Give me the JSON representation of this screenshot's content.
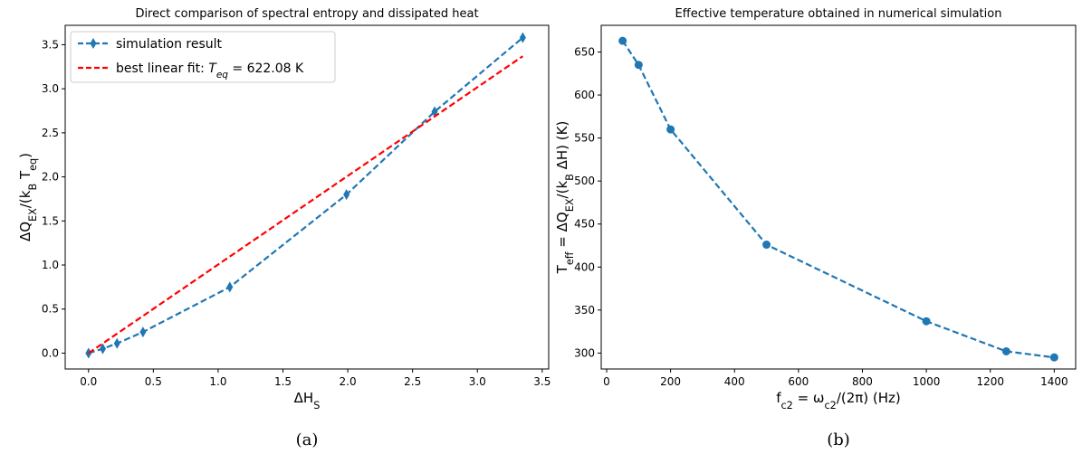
{
  "chart_data": [
    {
      "type": "line",
      "title": "Direct comparison of spectral entropy and dissipated heat",
      "xlabel": "ΔH_S",
      "ylabel": "ΔQ_EX/(k_B T_eq)",
      "xlim": [
        -0.18,
        3.55
      ],
      "ylim": [
        -0.18,
        3.72
      ],
      "xticks": [
        "0.0",
        "0.5",
        "1.0",
        "1.5",
        "2.0",
        "2.5",
        "3.0",
        "3.5"
      ],
      "yticks": [
        "0.0",
        "0.5",
        "1.0",
        "1.5",
        "2.0",
        "2.5",
        "3.0",
        "3.5"
      ],
      "grid": false,
      "legend_position": "top-left",
      "panel_label": "(a)",
      "series": [
        {
          "name": "simulation result",
          "style": "dashed",
          "marker": "thin-diamond",
          "color": "#1f77b4",
          "x": [
            0.0,
            0.11,
            0.22,
            0.42,
            1.09,
            1.99,
            2.67,
            3.35
          ],
          "y": [
            0.0,
            0.05,
            0.11,
            0.24,
            0.75,
            1.8,
            2.74,
            3.58
          ]
        },
        {
          "name": "best linear fit: T_eq = 622.08 K",
          "style": "dashed",
          "marker": "none",
          "color": "#ff0000",
          "x": [
            0.0,
            3.35
          ],
          "y": [
            0.0,
            3.37
          ]
        }
      ]
    },
    {
      "type": "line",
      "title": "Effective temperature obtained in numerical simulation",
      "xlabel": "f_c2 = ω_c2/(2π) (Hz)",
      "ylabel": "T_eff = ΔQ_EX/(k_B ΔH) (K)",
      "xlim": [
        -17,
        1467
      ],
      "ylim": [
        281.5,
        681
      ],
      "xticks": [
        "0",
        "200",
        "400",
        "600",
        "800",
        "1000",
        "1200",
        "1400"
      ],
      "yticks": [
        "300",
        "350",
        "400",
        "450",
        "500",
        "550",
        "600",
        "650"
      ],
      "grid": false,
      "panel_label": "(b)",
      "series": [
        {
          "style": "dashed",
          "marker": "circle",
          "color": "#1f77b4",
          "x": [
            50,
            100,
            200,
            500,
            1000,
            1250,
            1400
          ],
          "y": [
            663,
            635,
            560,
            426,
            337,
            302,
            295
          ]
        }
      ]
    }
  ]
}
